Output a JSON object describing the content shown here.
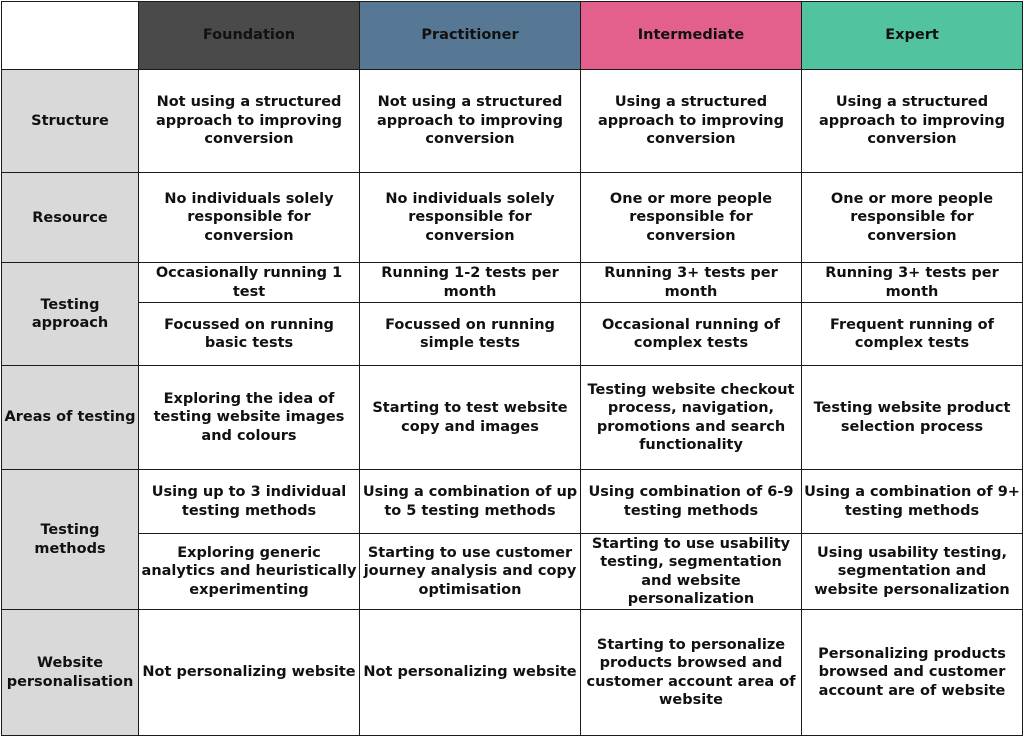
{
  "colors": {
    "foundation": "#4a4a4a",
    "practitioner": "#577894",
    "intermediate": "#e3608d",
    "expert": "#52c3a0",
    "row_label_bg": "#d9d9d9",
    "border": "#1a1a1a"
  },
  "levels": [
    "Foundation",
    "Practitioner",
    "Intermediate",
    "Expert"
  ],
  "rows": {
    "structure": {
      "label": "Structure",
      "cells": [
        "Not using a structured approach to improving conversion",
        "Not using a structured approach to improving conversion",
        "Using a structured approach to improving conversion",
        "Using a structured approach to improving conversion"
      ]
    },
    "resource": {
      "label": "Resource",
      "cells": [
        "No individuals solely responsible for conversion",
        "No individuals solely responsible for conversion",
        "One or more people responsible for conversion",
        "One or more people responsible for conversion"
      ]
    },
    "testing_approach": {
      "label": "Testing approach",
      "frequency": [
        "Occasionally running 1 test",
        "Running 1-2 tests per month",
        "Running 3+ tests per month",
        "Running 3+ tests per month"
      ],
      "complexity": [
        "Focussed on running basic tests",
        "Focussed on running simple tests",
        "Occasional running of complex tests",
        "Frequent running of complex tests"
      ]
    },
    "areas_of_testing": {
      "label": "Areas of testing",
      "cells": [
        "Exploring the idea of testing website images and colours",
        "Starting to test website copy and images",
        "Testing website checkout process, navigation, promotions and search functionality",
        "Testing website product selection process"
      ]
    },
    "testing_methods": {
      "label": "Testing methods",
      "methods_count": [
        "Using up to 3 individual testing methods",
        "Using a combination of up to 5 testing methods",
        "Using combination of 6-9 testing methods",
        "Using a combination of 9+ testing methods"
      ],
      "methods_type": [
        "Exploring generic analytics and heuristically experimenting",
        "Starting to use customer journey analysis and copy optimisation",
        "Starting to use usability testing, segmentation and website personalization",
        "Using usability testing, segmentation and website personalization"
      ]
    },
    "website_personalisation": {
      "label": "Website personalisation",
      "cells": [
        "Not personalizing website",
        "Not personalizing website",
        "Starting to personalize products browsed and customer account area of website",
        "Personalizing products browsed and customer account are of website"
      ]
    }
  }
}
